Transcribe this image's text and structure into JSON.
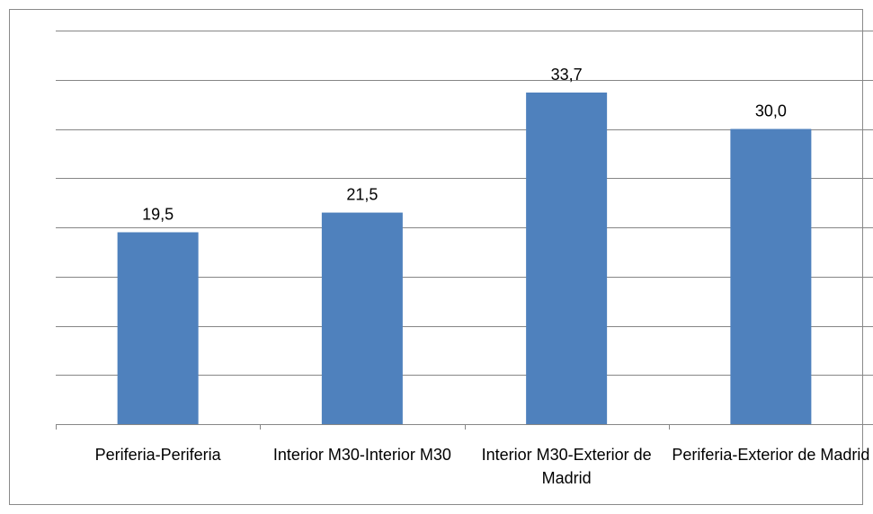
{
  "chart_data": {
    "type": "bar",
    "categories": [
      "Periferia-Periferia",
      "Interior M30-Interior M30",
      "Interior M30-Exterior de Madrid",
      "Periferia-Exterior de Madrid"
    ],
    "values": [
      19.5,
      21.5,
      33.7,
      30.0
    ],
    "data_labels": [
      "19,5",
      "21,5",
      "33,7",
      "30,0"
    ],
    "ylim": [
      0,
      40
    ],
    "y_gridline_step": 5,
    "grid": true,
    "legend": "none",
    "colors": {
      "bar": "#4f81bd",
      "grid": "#868686",
      "text": "#000000"
    }
  }
}
